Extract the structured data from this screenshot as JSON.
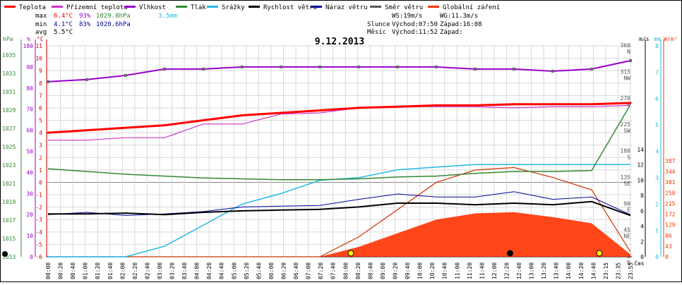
{
  "chart_data": {
    "type": "line",
    "title": "9.12.2013",
    "legend": [
      {
        "label": "Teplota",
        "color": "#ff0000"
      },
      {
        "label": "Přízemní teplota",
        "color": "#cc33cc"
      },
      {
        "label": "Vlhkost",
        "color": "#9900cc"
      },
      {
        "label": "Tlak",
        "color": "#338833"
      },
      {
        "label": "Srážky",
        "color": "#22b8e6"
      },
      {
        "label": "Rychlost větru",
        "color": "#000000"
      },
      {
        "label": "Náraz větru",
        "color": "#000099"
      },
      {
        "label": "Směr větru",
        "color": "#555555"
      },
      {
        "label": "Globální záření",
        "color": "#ff3300"
      }
    ],
    "stats": {
      "max_label": "max",
      "min_label": "min",
      "avg_label": "avg",
      "max_temp": "6.4°C",
      "max_hum": "93%",
      "max_press": "1029.8hPa",
      "max_rain": "3.5mm",
      "min_temp": "4.1°C",
      "min_hum": "83%",
      "min_press": "1020.6hPa",
      "avg_temp": "5.5°C"
    },
    "info": {
      "ws": "WS:19m/s",
      "wg": "WG:11.3m/s",
      "sun_label": "Slunce",
      "sun_rise": "Východ:07:50",
      "sun_set": "Západ:16:08",
      "moon_label": "Měsíc",
      "moon_rise": "Východ:11:52",
      "moon_set": "Západ:"
    },
    "axes": {
      "hpa_label": "hPa",
      "pct_label": "%",
      "temp_label": "°C",
      "ms_label": "m/s",
      "mm_label": "mm",
      "wm2_label": "W/m²",
      "time_label": "čas",
      "hpa_ticks": [
        "1013",
        "1015",
        "1017",
        "1019",
        "1021",
        "1023",
        "1025",
        "1027",
        "1029",
        "1031",
        "1033",
        "1035"
      ],
      "pct_ticks": [
        "0",
        "10",
        "20",
        "30",
        "40",
        "50",
        "60",
        "70",
        "80",
        "90",
        "100"
      ],
      "temp_ticks": [
        "-6",
        "-5",
        "-4",
        "-3",
        "-2",
        "-1",
        "0",
        "1",
        "2",
        "3",
        "4",
        "5",
        "6",
        "7",
        "8",
        "9",
        "10",
        "11"
      ],
      "deg_ticks": [
        {
          "deg": "0",
          "dir": "N"
        },
        {
          "deg": "45",
          "dir": "NE"
        },
        {
          "deg": "90",
          "dir": "E"
        },
        {
          "deg": "135",
          "dir": "SE"
        },
        {
          "deg": "180",
          "dir": "S"
        },
        {
          "deg": "225",
          "dir": "SW"
        },
        {
          "deg": "270",
          "dir": "W"
        },
        {
          "deg": "315",
          "dir": "NW"
        },
        {
          "deg": "360",
          "dir": "N"
        }
      ],
      "ms_ticks": [
        "0",
        "2",
        "4",
        "6",
        "8",
        "10",
        "12",
        "14"
      ],
      "mm_ticks": [
        "0",
        "1",
        "2",
        "3",
        "4",
        "5",
        "6",
        "7",
        "8"
      ],
      "wm2_ticks": [
        "0",
        "43",
        "86",
        "129",
        "172",
        "215",
        "258",
        "301",
        "344",
        "387"
      ],
      "time_ticks": [
        "00:00",
        "00:20",
        "00:40",
        "01:00",
        "01:20",
        "01:40",
        "02:00",
        "02:20",
        "02:40",
        "03:00",
        "03:20",
        "03:40",
        "04:00",
        "04:20",
        "04:40",
        "05:00",
        "05:20",
        "05:40",
        "06:00",
        "06:20",
        "06:40",
        "07:00",
        "07:20",
        "07:40",
        "08:00",
        "08:20",
        "08:40",
        "09:00",
        "09:20",
        "09:40",
        "10:00",
        "10:20",
        "10:40",
        "11:00",
        "11:20",
        "11:40",
        "12:00",
        "12:20",
        "12:40",
        "13:00",
        "13:20",
        "13:40",
        "14:00",
        "14:20",
        "14:40",
        "23:15",
        "23:35",
        "23:55"
      ]
    },
    "series_hourly_index": [
      "00",
      "01",
      "02",
      "03",
      "04",
      "05",
      "06",
      "07",
      "08",
      "09",
      "10",
      "11",
      "12",
      "13",
      "14",
      "15"
    ],
    "temperature_c": [
      4.0,
      4.2,
      4.4,
      4.6,
      5.0,
      5.4,
      5.6,
      5.8,
      6.0,
      6.1,
      6.2,
      6.2,
      6.3,
      6.3,
      6.3,
      6.4
    ],
    "ground_temp_c": [
      3.4,
      3.4,
      3.6,
      3.6,
      4.7,
      4.7,
      5.5,
      5.6,
      6.0,
      6.1,
      6.1,
      6.1,
      6.0,
      6.1,
      6.1,
      6.2
    ],
    "humidity_pct": [
      83,
      84,
      86,
      89,
      89,
      90,
      90,
      90,
      90,
      90,
      90,
      89,
      89,
      88,
      89,
      93
    ],
    "pressure_hpa": [
      1022.6,
      1022.3,
      1022.0,
      1021.8,
      1021.6,
      1021.5,
      1021.4,
      1021.4,
      1021.5,
      1021.7,
      1021.8,
      1022.1,
      1022.3,
      1022.3,
      1022.4,
      1029.6
    ],
    "rain_mm": [
      0,
      0,
      0,
      0.4,
      1.2,
      2.0,
      2.4,
      2.9,
      3.0,
      3.3,
      3.4,
      3.5,
      3.5,
      3.5,
      3.5,
      3.5
    ],
    "wind_speed_ms": [
      5.6,
      5.6,
      5.7,
      5.5,
      5.8,
      6.0,
      6.1,
      6.2,
      6.5,
      7.0,
      7.0,
      6.8,
      7.0,
      6.8,
      7.2,
      5.4
    ],
    "wind_gust_ms": [
      5.5,
      5.8,
      5.4,
      5.6,
      5.9,
      6.5,
      6.6,
      6.7,
      7.5,
      8.2,
      7.8,
      7.8,
      8.5,
      7.5,
      7.8,
      5.5
    ],
    "solar_wm2": [
      0,
      0,
      0,
      0,
      0,
      0,
      0,
      0,
      80,
      190,
      300,
      350,
      360,
      320,
      270,
      20
    ]
  }
}
